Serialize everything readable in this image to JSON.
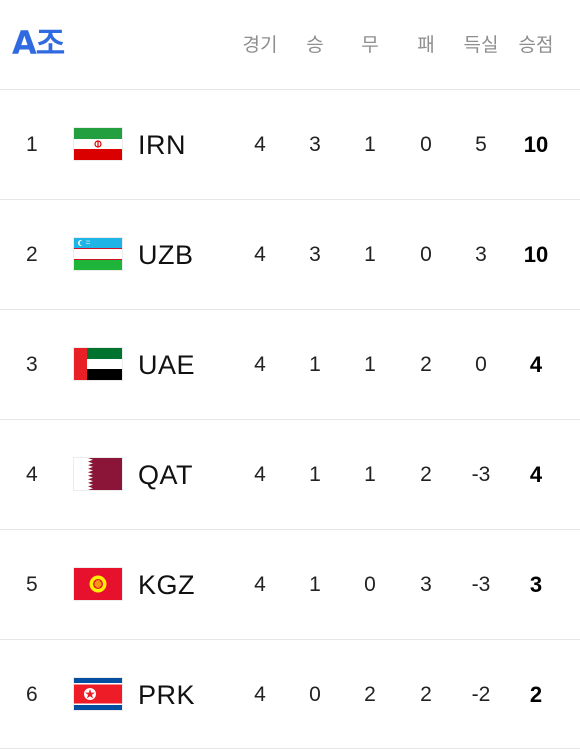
{
  "group_title": "A조",
  "columns": {
    "played": "경기",
    "won": "승",
    "drawn": "무",
    "lost": "패",
    "goal_diff": "득실",
    "points": "승점"
  },
  "rows": [
    {
      "rank": "1",
      "team": "IRN",
      "flag": "iran-flag-icon",
      "played": "4",
      "won": "3",
      "drawn": "1",
      "lost": "0",
      "goal_diff": "5",
      "points": "10"
    },
    {
      "rank": "2",
      "team": "UZB",
      "flag": "uzbekistan-flag-icon",
      "played": "4",
      "won": "3",
      "drawn": "1",
      "lost": "0",
      "goal_diff": "3",
      "points": "10"
    },
    {
      "rank": "3",
      "team": "UAE",
      "flag": "uae-flag-icon",
      "played": "4",
      "won": "1",
      "drawn": "1",
      "lost": "2",
      "goal_diff": "0",
      "points": "4"
    },
    {
      "rank": "4",
      "team": "QAT",
      "flag": "qatar-flag-icon",
      "played": "4",
      "won": "1",
      "drawn": "1",
      "lost": "2",
      "goal_diff": "-3",
      "points": "4"
    },
    {
      "rank": "5",
      "team": "KGZ",
      "flag": "kyrgyzstan-flag-icon",
      "played": "4",
      "won": "1",
      "drawn": "0",
      "lost": "3",
      "goal_diff": "-3",
      "points": "3"
    },
    {
      "rank": "6",
      "team": "PRK",
      "flag": "north-korea-flag-icon",
      "played": "4",
      "won": "0",
      "drawn": "2",
      "lost": "2",
      "goal_diff": "-2",
      "points": "2"
    }
  ],
  "colors": {
    "title": "#2f6ae0",
    "header_text": "#8e8e8e",
    "divider": "#e6e6e6"
  }
}
